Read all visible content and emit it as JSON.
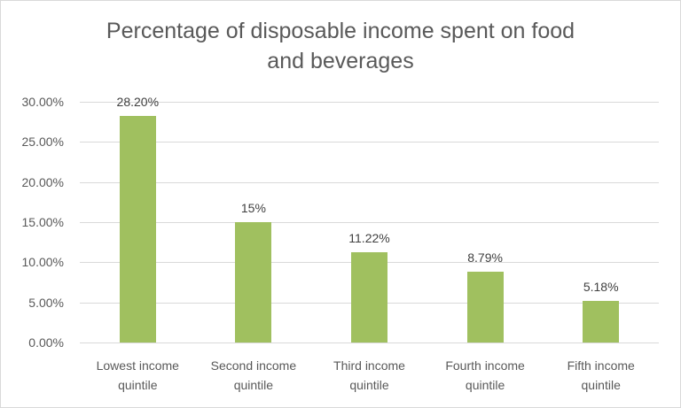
{
  "chart_data": {
    "type": "bar",
    "title": "Percentage of disposable income spent on food and beverages",
    "title_lines": [
      "Percentage of disposable income spent on food",
      "and beverages"
    ],
    "categories": [
      "Lowest income quintile",
      "Second income quintile",
      "Third income quintile",
      "Fourth income quintile",
      "Fifth income quintile"
    ],
    "category_lines": [
      [
        "Lowest income",
        "quintile"
      ],
      [
        "Second income",
        "quintile"
      ],
      [
        "Third income",
        "quintile"
      ],
      [
        "Fourth income",
        "quintile"
      ],
      [
        "Fifth income",
        "quintile"
      ]
    ],
    "values": [
      28.2,
      15.0,
      11.22,
      8.79,
      5.18
    ],
    "data_labels": [
      "28.20%",
      "15%",
      "11.22%",
      "8.79%",
      "5.18%"
    ],
    "xlabel": "",
    "ylabel": "",
    "ylim": [
      0,
      30
    ],
    "yticks": [
      "0.00%",
      "5.00%",
      "10.00%",
      "15.00%",
      "20.00%",
      "25.00%",
      "30.00%"
    ],
    "ytick_values": [
      0,
      5,
      10,
      15,
      20,
      25,
      30
    ],
    "grid": true,
    "legend": null,
    "bar_color": "#a0c05f"
  }
}
